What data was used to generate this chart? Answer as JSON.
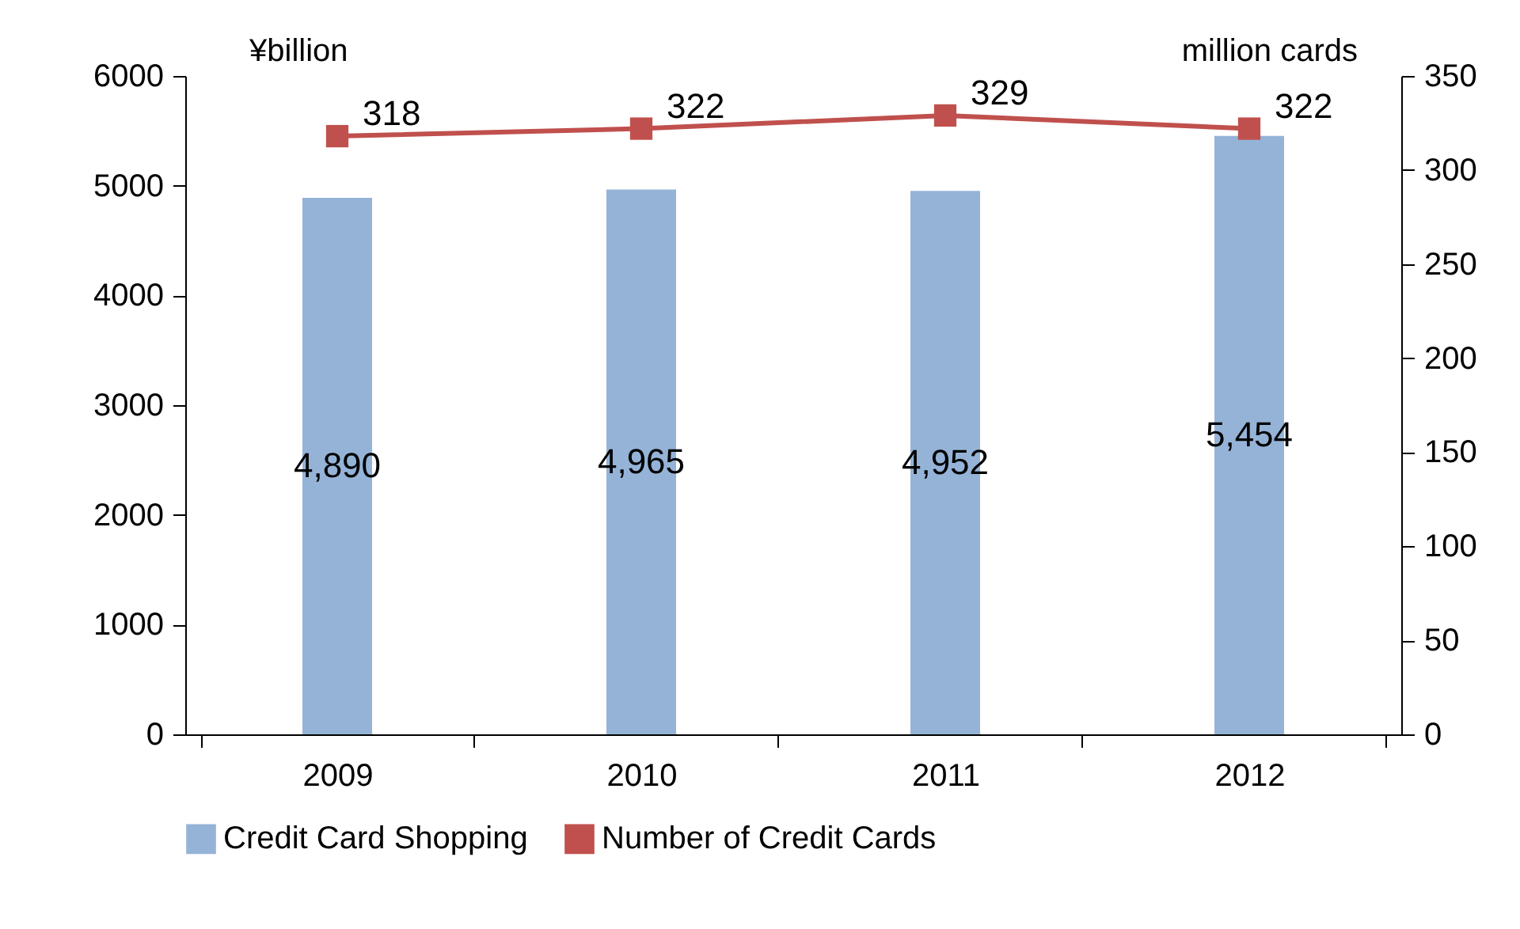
{
  "chart_data": {
    "type": "bar",
    "categories": [
      "2009",
      "2010",
      "2011",
      "2012"
    ],
    "ylabel": "¥billion",
    "y2label": "million cards",
    "ylim": [
      0,
      6000
    ],
    "yticks": [
      0,
      1000,
      2000,
      3000,
      4000,
      5000,
      6000
    ],
    "y2lim": [
      0,
      350
    ],
    "y2ticks": [
      0,
      50,
      100,
      150,
      200,
      250,
      300,
      350
    ],
    "series": [
      {
        "name": "Credit Card Shopping",
        "color": "#95b3d7",
        "values": [
          4890,
          4965,
          4952,
          5454
        ],
        "value_labels": [
          "4,890",
          "4,965",
          "4,952",
          "5,454"
        ]
      },
      {
        "name": "Number of Credit Cards",
        "type": "line",
        "axis": "y2",
        "color": "#c0504d",
        "marker": "square",
        "values": [
          318,
          322,
          329,
          322
        ],
        "value_labels": [
          "318",
          "322",
          "329",
          "322"
        ]
      }
    ],
    "legend": "bottom",
    "grid": false
  }
}
